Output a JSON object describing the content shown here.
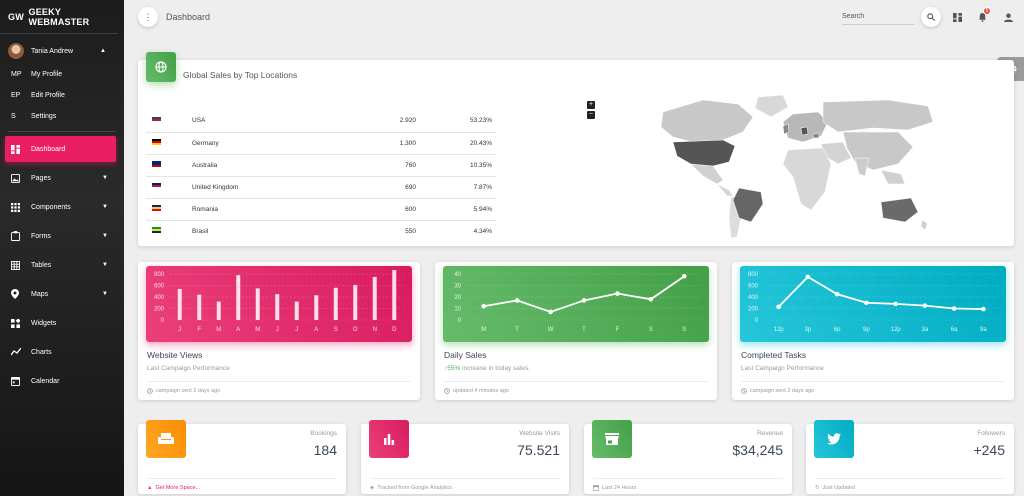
{
  "brand": {
    "mini": "GW",
    "name": "GEEKY WEBMASTER"
  },
  "user": {
    "name": "Tania Andrew",
    "menu": [
      {
        "mini": "MP",
        "label": "My Profile"
      },
      {
        "mini": "EP",
        "label": "Edit Profile"
      },
      {
        "mini": "S",
        "label": "Settings"
      }
    ]
  },
  "nav": {
    "dashboard": "Dashboard",
    "pages": "Pages",
    "components": "Components",
    "forms": "Forms",
    "tables": "Tables",
    "maps": "Maps",
    "widgets": "Widgets",
    "charts": "Charts",
    "calendar": "Calendar"
  },
  "topbar": {
    "title": "Dashboard",
    "search_placeholder": "Search",
    "notifications": "5"
  },
  "locations": {
    "title": "Global Sales by Top Locations",
    "rows": [
      {
        "country": "USA",
        "value": "2.920",
        "pct": "53.23%"
      },
      {
        "country": "Germany",
        "value": "1.300",
        "pct": "20.43%"
      },
      {
        "country": "Australia",
        "value": "760",
        "pct": "10.35%"
      },
      {
        "country": "United Kingdom",
        "value": "690",
        "pct": "7.87%"
      },
      {
        "country": "Romania",
        "value": "600",
        "pct": "5.94%"
      },
      {
        "country": "Brasil",
        "value": "550",
        "pct": "4.34%"
      }
    ],
    "zoom_in": "+",
    "zoom_out": "−"
  },
  "cards": {
    "views": {
      "title": "Website Views",
      "sub": "Last Campaign Performance",
      "foot": "campaign sent 2 days ago"
    },
    "sales": {
      "title": "Daily Sales",
      "sub_strong": "55%",
      "sub_rest": " increase in today sales.",
      "foot": "updated 4 minutes ago"
    },
    "tasks": {
      "title": "Completed Tasks",
      "sub": "Last Campaign Performance",
      "foot": "campaign sent 2 days ago"
    }
  },
  "chart_data": [
    {
      "type": "bar",
      "categories": [
        "J",
        "F",
        "M",
        "A",
        "M",
        "J",
        "J",
        "A",
        "S",
        "O",
        "N",
        "D"
      ],
      "values": [
        540,
        440,
        320,
        780,
        550,
        450,
        320,
        430,
        560,
        610,
        750,
        895
      ],
      "ylim": [
        0,
        800
      ],
      "yticks": [
        0,
        200,
        400,
        600,
        800
      ]
    },
    {
      "type": "line",
      "categories": [
        "M",
        "T",
        "W",
        "T",
        "F",
        "S",
        "S"
      ],
      "values": [
        12,
        17,
        7,
        17,
        23,
        18,
        38
      ],
      "ylim": [
        0,
        40
      ],
      "yticks": [
        0,
        10,
        20,
        30,
        40
      ]
    },
    {
      "type": "line",
      "categories": [
        "12p",
        "3p",
        "6p",
        "9p",
        "12p",
        "3a",
        "6a",
        "9a"
      ],
      "values": [
        230,
        750,
        450,
        300,
        280,
        250,
        200,
        190
      ],
      "ylim": [
        0,
        800
      ],
      "yticks": [
        0,
        200,
        400,
        600,
        800
      ]
    }
  ],
  "stats": [
    {
      "label": "Bookings",
      "value": "184",
      "foot": "Get More Space...",
      "color": "#ff9800"
    },
    {
      "label": "Website Visits",
      "value": "75.521",
      "foot": "Tracked from Google Analytics",
      "color": "#e91e63"
    },
    {
      "label": "Revenue",
      "value": "$34,245",
      "foot": "Last 24 Hours",
      "color": "#4caf50"
    },
    {
      "label": "Followers",
      "value": "+245",
      "foot": "Just Updated",
      "color": "#00bcd4"
    }
  ],
  "colors": {
    "accent": "#e91e63",
    "green": "#4caf50",
    "cyan": "#00bcd4",
    "orange": "#ff9800"
  }
}
